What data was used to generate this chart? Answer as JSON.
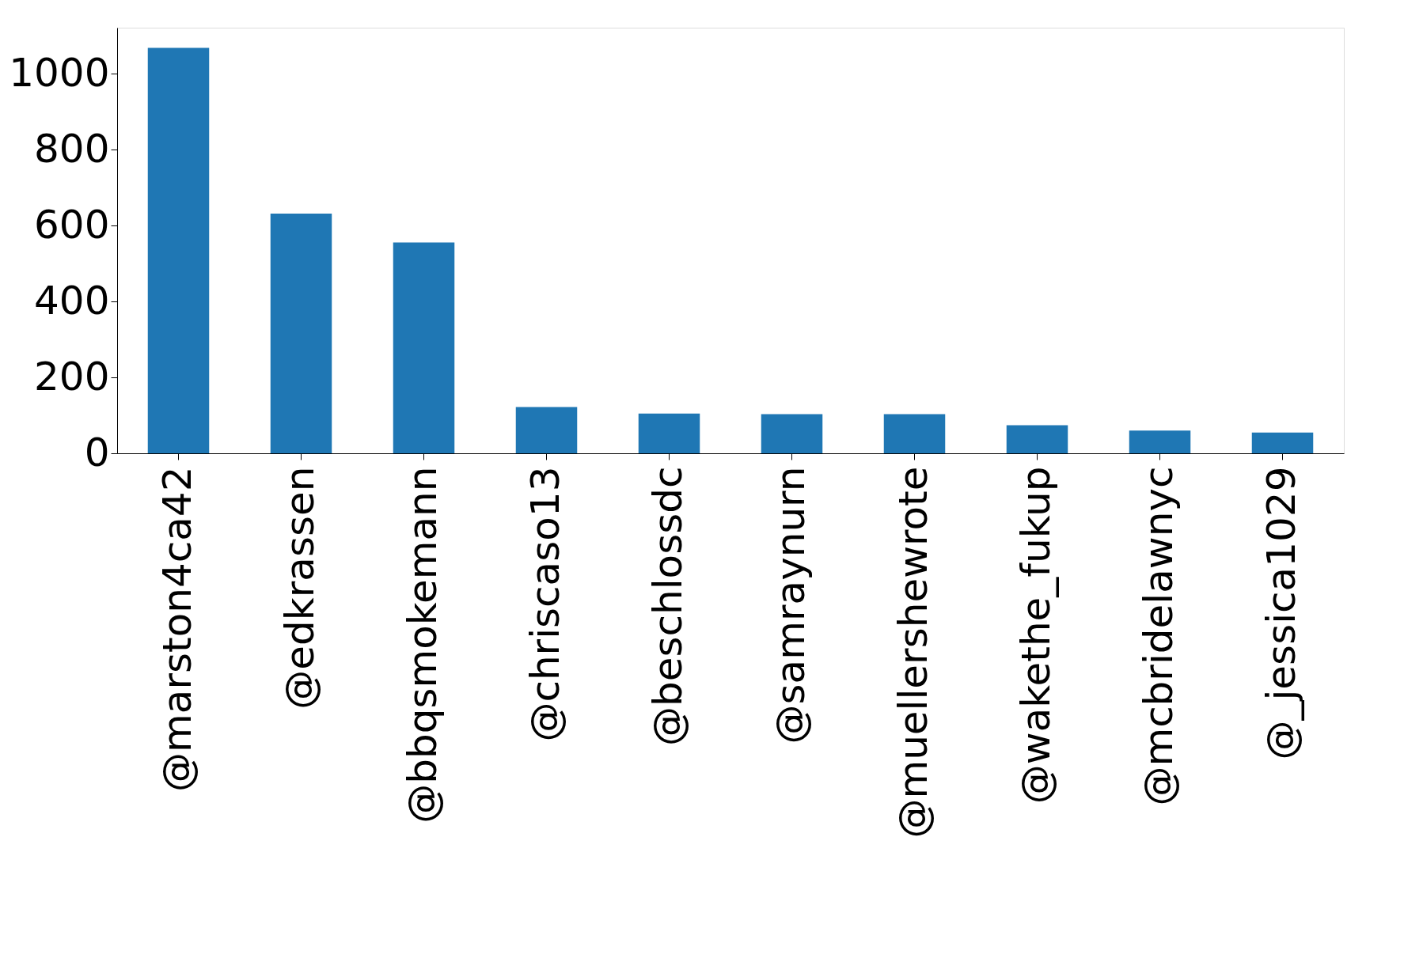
{
  "chart_data": {
    "type": "bar",
    "categories": [
      "@marston4ca42",
      "@edkrassen",
      "@bbqsmokemann",
      "@chriscaso13",
      "@beschlossdc",
      "@samraynurn",
      "@muellershewrote",
      "@wakethe_fukup",
      "@mcbridelawnyc",
      "@_jessica1029"
    ],
    "values": [
      1069,
      632,
      556,
      122,
      105,
      103,
      103,
      74,
      60,
      55
    ],
    "color": "#1f77b4",
    "ylim": [
      0,
      1122
    ],
    "yticks": [
      0,
      200,
      400,
      600,
      800,
      1000
    ],
    "grid": false
  }
}
